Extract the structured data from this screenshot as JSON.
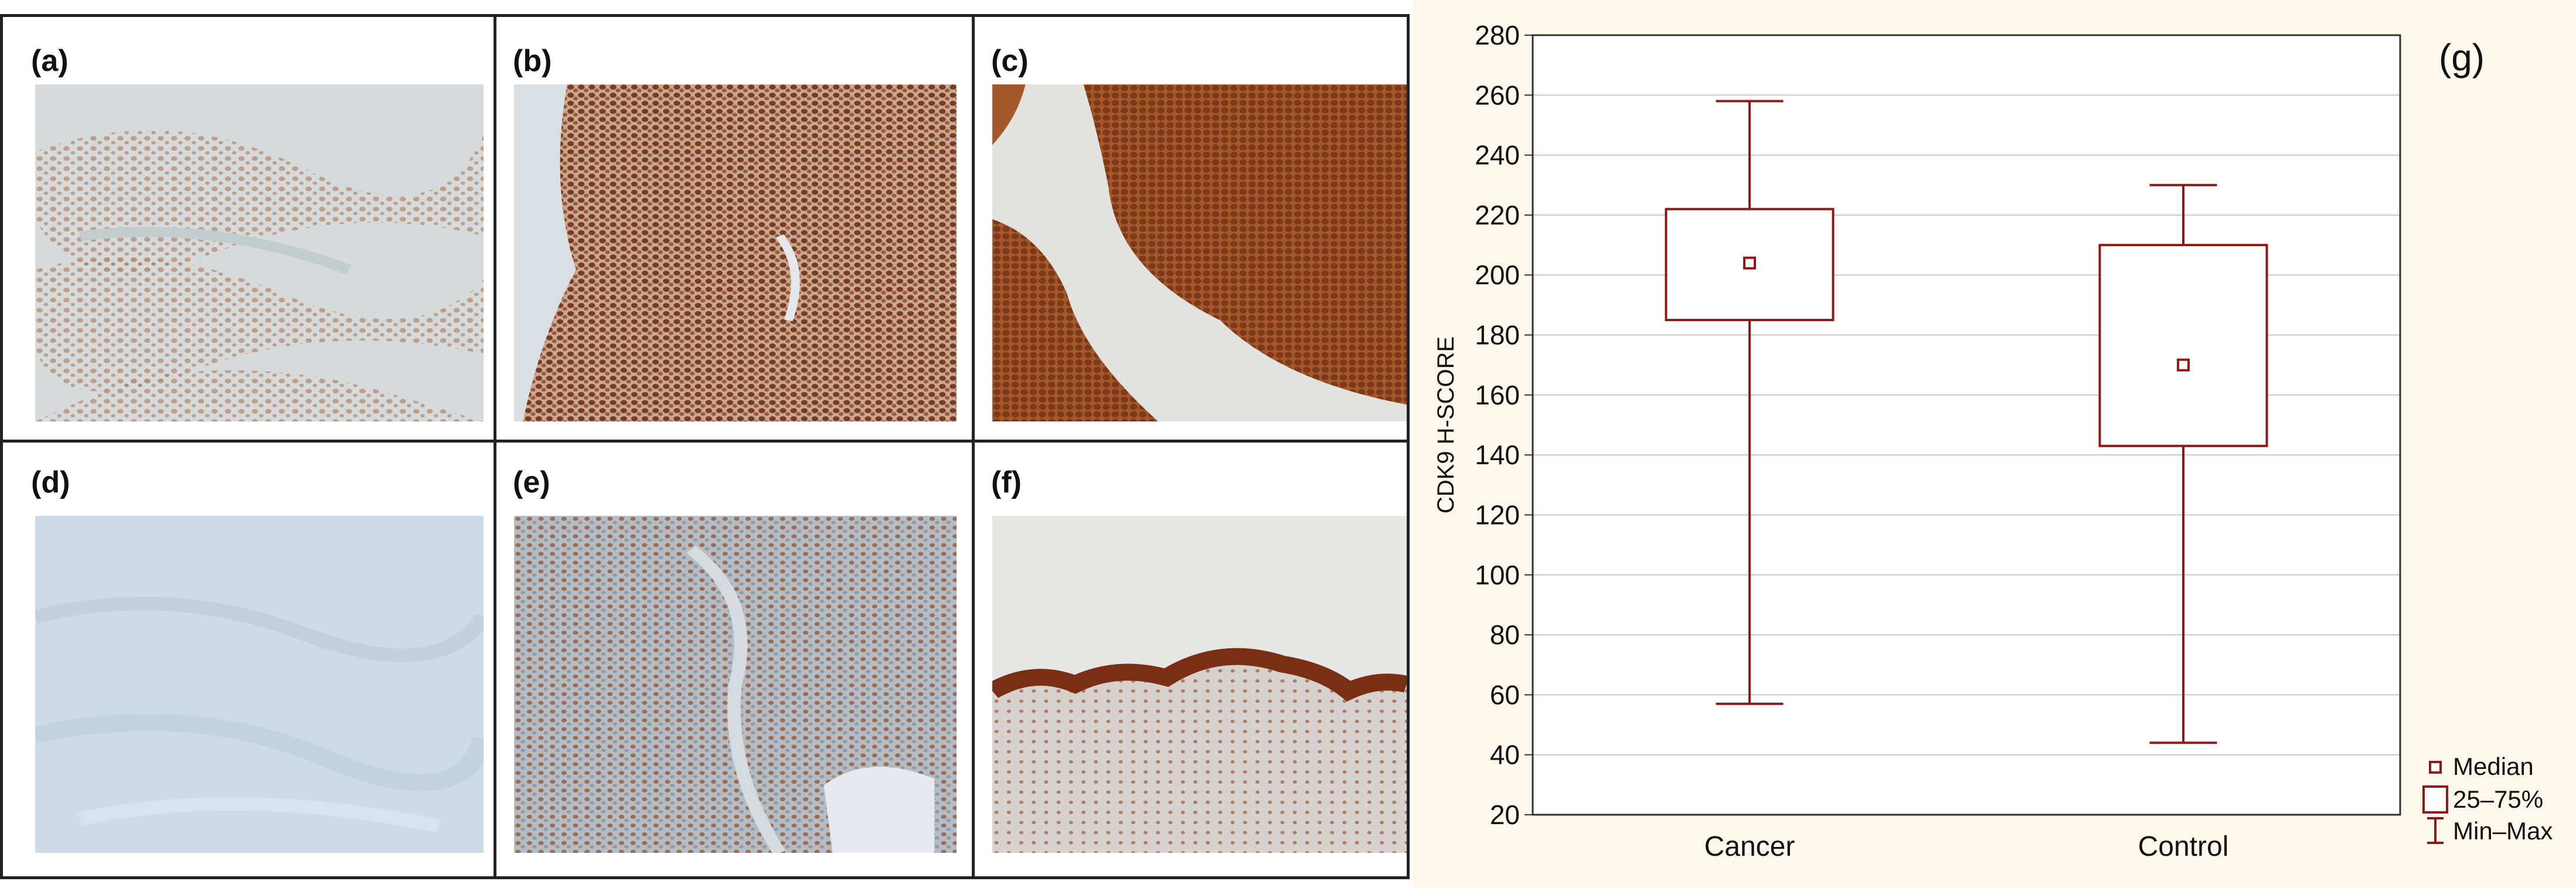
{
  "panels": [
    {
      "label": "(a)",
      "icon": "ihc-micrograph-weak-stain"
    },
    {
      "label": "(b)",
      "icon": "ihc-micrograph-strong-stain"
    },
    {
      "label": "(c)",
      "icon": "ihc-micrograph-strong-stain"
    },
    {
      "label": "(d)",
      "icon": "ihc-micrograph-negative-stain"
    },
    {
      "label": "(e)",
      "icon": "ihc-micrograph-moderate-stain"
    },
    {
      "label": "(f)",
      "icon": "ihc-micrograph-epithelium-stain"
    }
  ],
  "colors": {
    "box": "#8b1a1a",
    "plot_bg": "#fdf7ec",
    "grid": "#c8c8c8",
    "stain_brown": "#8a4a2a",
    "counter_blue": "#c9d6de"
  },
  "chart_data": {
    "type": "box",
    "panel_label": "(g)",
    "ylabel": "CDK9 H-SCORE",
    "xlabel": "",
    "ylim": [
      20,
      280
    ],
    "yticks": [
      20,
      40,
      60,
      80,
      100,
      120,
      140,
      160,
      180,
      200,
      220,
      240,
      260,
      280
    ],
    "grid": true,
    "legend_position": "bottom-right",
    "categories": [
      "Cancer",
      "Control"
    ],
    "boxes": [
      {
        "category": "Cancer",
        "min": 57,
        "q1": 185,
        "median": 204,
        "q3": 222,
        "max": 258
      },
      {
        "category": "Control",
        "min": 44,
        "q1": 143,
        "median": 170,
        "q3": 210,
        "max": 230
      }
    ],
    "legend": [
      {
        "symbol": "median-marker",
        "label": "Median"
      },
      {
        "symbol": "box",
        "label": "25–75%"
      },
      {
        "symbol": "whisker",
        "label": "Min–Max"
      }
    ]
  }
}
